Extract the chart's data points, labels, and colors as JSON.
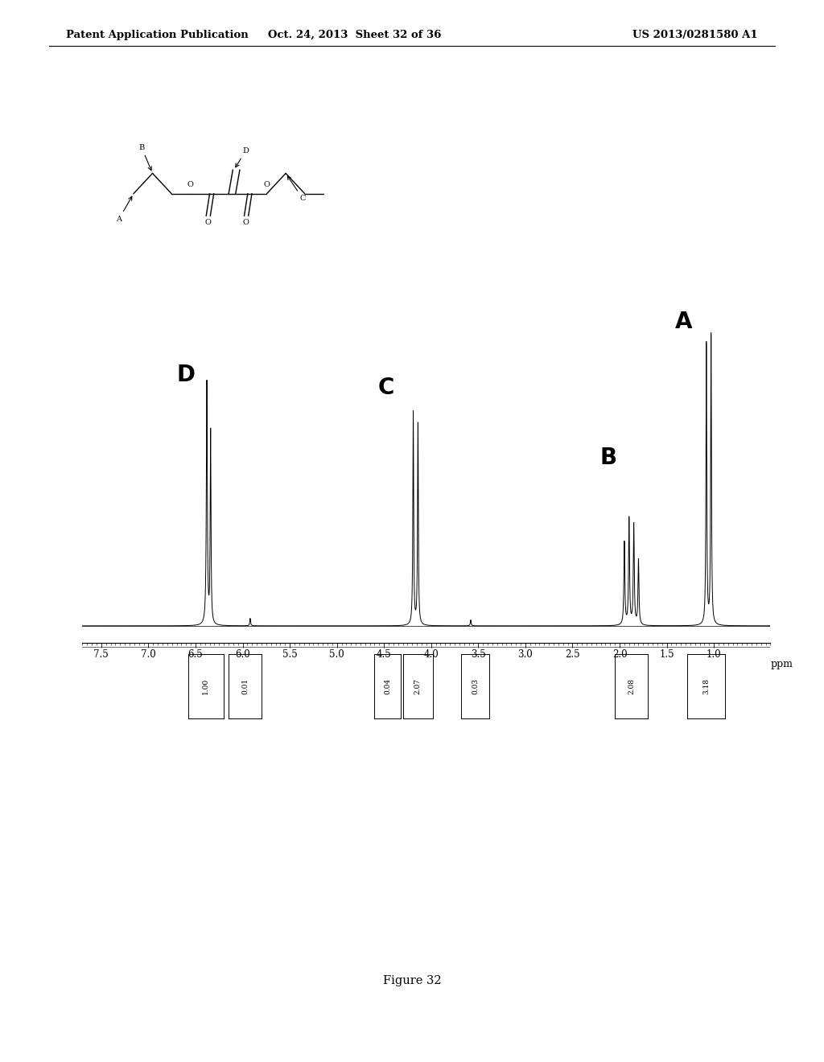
{
  "header_left": "Patent Application Publication",
  "header_center": "Oct. 24, 2013  Sheet 32 of 36",
  "header_right": "US 2013/0281580 A1",
  "figure_caption": "Figure 32",
  "x_ticks": [
    7.5,
    7.0,
    6.5,
    6.0,
    5.5,
    5.0,
    4.5,
    4.0,
    3.5,
    3.0,
    2.5,
    2.0,
    1.5,
    1.0
  ],
  "x_label": "ppm",
  "background_color": "#ffffff",
  "text_color": "#000000",
  "spectrum_color": "#000000"
}
